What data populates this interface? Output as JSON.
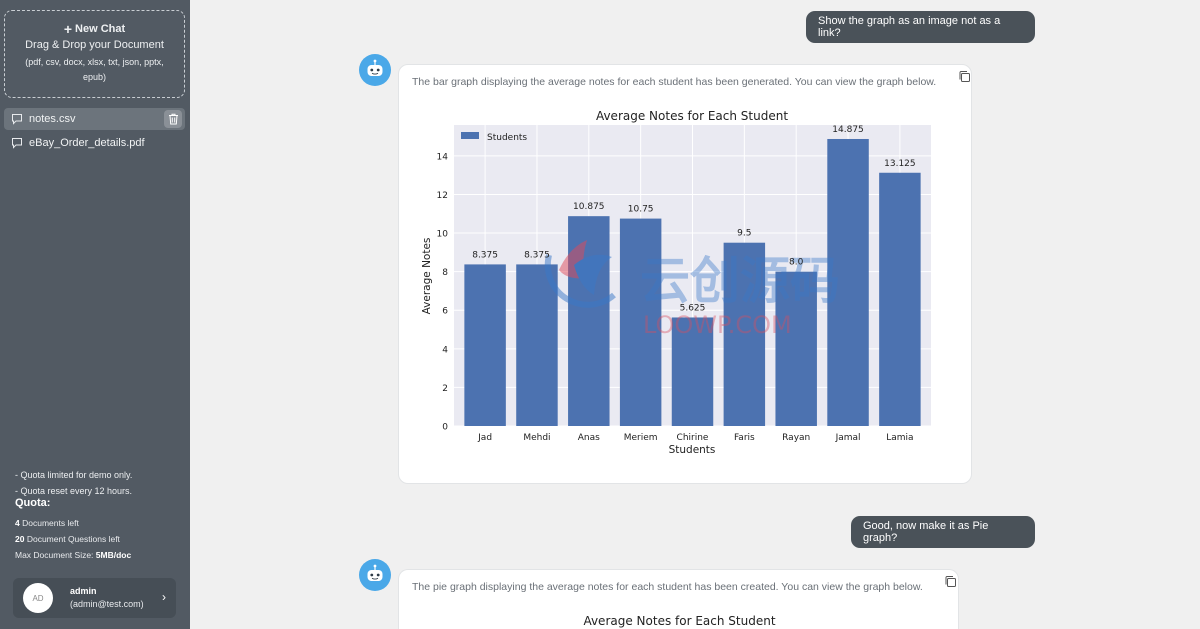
{
  "sidebar": {
    "new_chat_label": "New Chat",
    "drop_title": "Drag & Drop your Document",
    "drop_types": "(pdf, csv, docx, xlsx, txt, json, pptx, epub)",
    "files": [
      {
        "name": "notes.csv",
        "active": true
      },
      {
        "name": "eBay_Order_details.pdf",
        "active": false
      }
    ],
    "quota_note_1": "- Quota limited for demo only.",
    "quota_note_2": "- Quota reset every 12 hours.",
    "quota_title": "Quota:",
    "quota_documents_count": "4",
    "quota_documents_label": "Documents left",
    "quota_questions_count": "20",
    "quota_questions_label": "Document Questions left",
    "quota_size_label": "Max Document Size:",
    "quota_size_value": "5MB/doc",
    "user": {
      "initials": "AD",
      "name": "admin",
      "email": "(admin@test.com)"
    }
  },
  "chat": {
    "msg1": "Show the graph as an image not as a link?",
    "bot1": "The bar graph displaying the average notes for each student has been generated. You can view the graph below.",
    "msg2": "Good, now make it as Pie graph?",
    "bot2": "The pie graph displaying the average notes for each student has been created. You can view the graph below.",
    "pie_title": "Average Notes for Each Student"
  },
  "watermark": {
    "line1": "云创源码",
    "line2": "LOOWP.COM"
  },
  "chart_data": {
    "type": "bar",
    "title": "Average Notes for Each Student",
    "xlabel": "Students",
    "ylabel": "Average Notes",
    "legend": "Students",
    "legend_position": "top-left",
    "categories": [
      "Jad",
      "Mehdi",
      "Anas",
      "Meriem",
      "Chirine",
      "Faris",
      "Rayan",
      "Jamal",
      "Lamia"
    ],
    "values": [
      8.375,
      8.375,
      10.875,
      10.75,
      5.625,
      9.5,
      8.0,
      14.875,
      13.125
    ],
    "value_labels": [
      "8.375",
      "8.375",
      "10.875",
      "10.75",
      "5.625",
      "9.5",
      "8.0",
      "14.875",
      "13.125"
    ],
    "yticks": [
      0,
      2,
      4,
      6,
      8,
      10,
      12,
      14
    ],
    "ylim": [
      0,
      15.6
    ],
    "grid": true,
    "bar_color": "#4c72b0",
    "plot_bg": "#eaeaf2"
  }
}
